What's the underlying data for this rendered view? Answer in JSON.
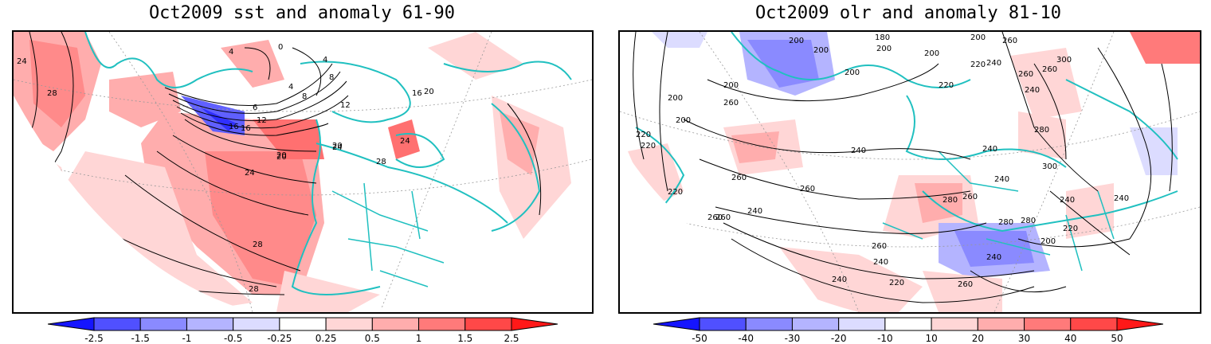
{
  "panels": [
    {
      "title": "Oct2009 sst and anomaly 61-90",
      "contour_labels": [
        "0",
        "4",
        "4",
        "8",
        "4",
        "8",
        "6",
        "12",
        "16",
        "12",
        "16",
        "20",
        "20",
        "24",
        "24",
        "28",
        "28",
        "28",
        "16",
        "20",
        "20",
        "24",
        "24",
        "28"
      ],
      "colorbar": {
        "ticks": [
          "-2.5",
          "-1.5",
          "-1",
          "-0.5",
          "-0.25",
          "0.25",
          "0.5",
          "1",
          "1.5",
          "2.5"
        ],
        "colors": [
          "#1515ff",
          "#5050ff",
          "#8a8aff",
          "#b4b4ff",
          "#dcdcff",
          "#ffffff",
          "#ffd6d6",
          "#ffadad",
          "#ff7a7a",
          "#ff4848",
          "#ff1818"
        ]
      }
    },
    {
      "title": "Oct2009 olr and anomaly 81-10",
      "contour_labels": [
        "200",
        "180",
        "200",
        "200",
        "200",
        "200",
        "220",
        "220",
        "200",
        "260",
        "260",
        "240",
        "260",
        "300",
        "240",
        "260",
        "200",
        "200",
        "200",
        "280",
        "220",
        "240",
        "240",
        "220",
        "220",
        "260",
        "280",
        "260",
        "240",
        "260",
        "260",
        "280",
        "300",
        "280",
        "240",
        "220",
        "240",
        "260",
        "260",
        "240",
        "240",
        "220",
        "260",
        "240",
        "200",
        "240"
      ],
      "colorbar": {
        "ticks": [
          "-50",
          "-40",
          "-30",
          "-20",
          "-10",
          "10",
          "20",
          "30",
          "40",
          "50"
        ],
        "colors": [
          "#1515ff",
          "#5050ff",
          "#8a8aff",
          "#b4b4ff",
          "#dcdcff",
          "#ffffff",
          "#ffd6d6",
          "#ffadad",
          "#ff7a7a",
          "#ff4848",
          "#ff1818"
        ]
      }
    }
  ]
}
